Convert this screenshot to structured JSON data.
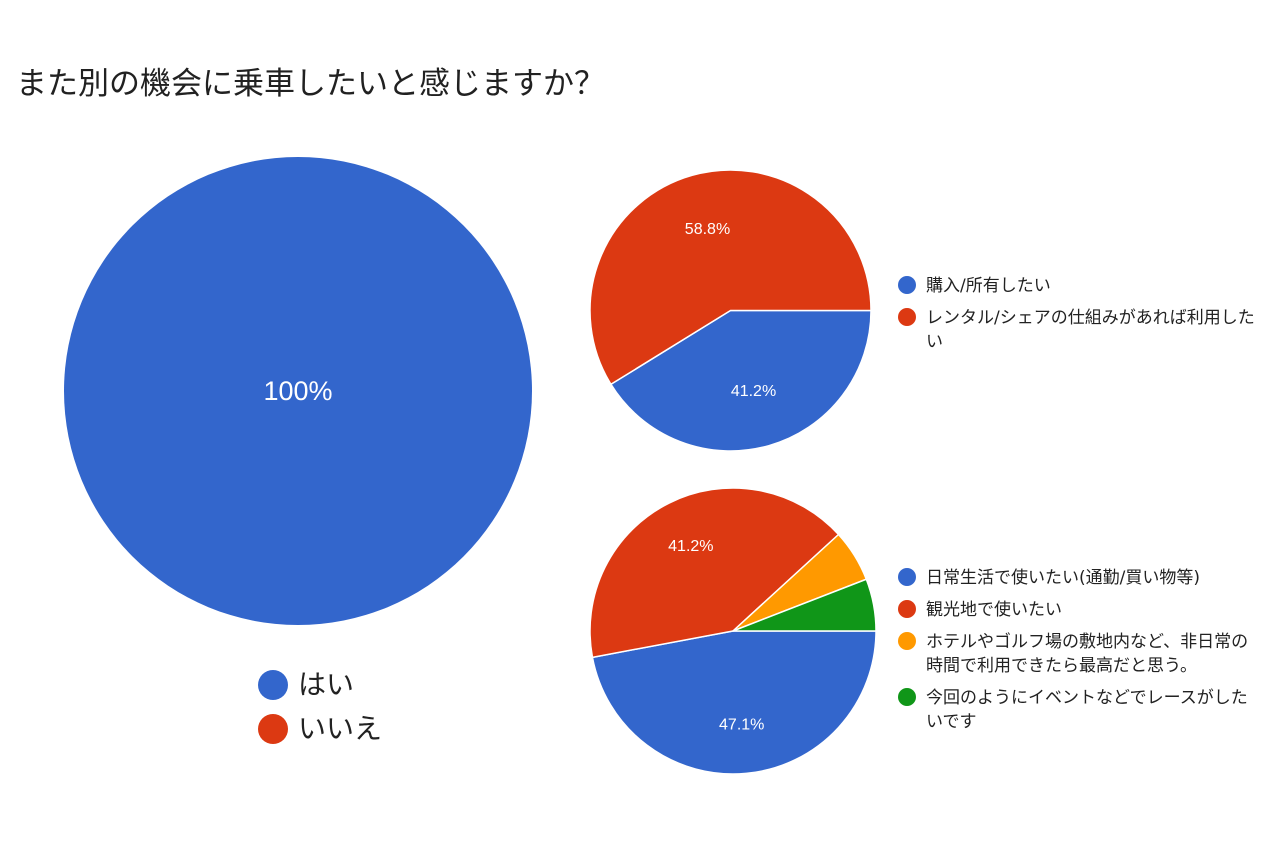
{
  "title": "また別の機会に乗車したいと感じますか？",
  "chart_data": [
    {
      "type": "pie",
      "labels": [
        "はい",
        "いいえ"
      ],
      "values": [
        100,
        0
      ],
      "slice_labels": [
        "100%",
        ""
      ],
      "colors": [
        "#3366cc",
        "#dc3912"
      ],
      "legend_position": "bottom"
    },
    {
      "type": "pie",
      "labels": [
        "購入/所有したい",
        "レンタル/シェアの仕組みがあれば利用したい"
      ],
      "values": [
        41.2,
        58.8
      ],
      "slice_labels": [
        "41.2%",
        "58.8%"
      ],
      "colors": [
        "#3366cc",
        "#dc3912"
      ],
      "legend_position": "right"
    },
    {
      "type": "pie",
      "labels": [
        "日常生活で使いたい(通勤/買い物等)",
        "観光地で使いたい",
        "ホテルやゴルフ場の敷地内など、非日常の時間で利用できたら最高だと思う。",
        "今回のようにイベントなどでレースがしたいです"
      ],
      "values": [
        47.1,
        41.2,
        5.9,
        5.9
      ],
      "slice_labels": [
        "47.1%",
        "41.2%",
        "",
        ""
      ],
      "colors": [
        "#3366cc",
        "#dc3912",
        "#ff9900",
        "#109618"
      ],
      "legend_position": "right"
    }
  ]
}
